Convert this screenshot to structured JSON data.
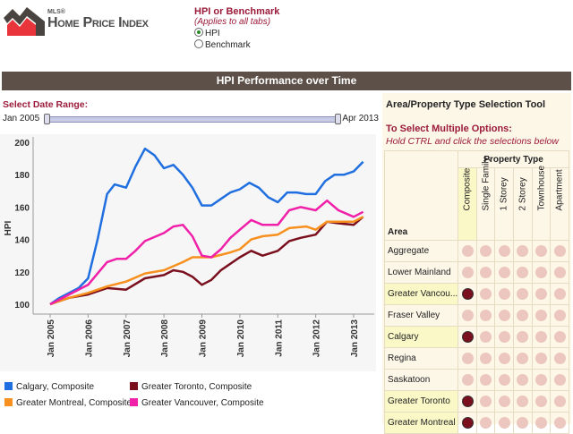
{
  "logo": {
    "mls": "MLS®",
    "title": "Home Price Index"
  },
  "options": {
    "title": "HPI or Benchmark",
    "subtitle": "(Applies to all tabs)",
    "choices": [
      {
        "label": "HPI",
        "selected": true
      },
      {
        "label": "Benchmark",
        "selected": false
      }
    ]
  },
  "banner": "HPI Performance over Time",
  "date_range": {
    "label": "Select Date Range:",
    "start": "Jan 2005",
    "end": "Apr 2013"
  },
  "panel": {
    "title": "Area/Property Type Selection Tool",
    "multi": "To Select Multiple Options:",
    "hint": "Hold CTRL and click the selections below",
    "property_type": "Property Type",
    "area_header": "Area",
    "columns": [
      "Composite",
      "Single Family",
      "1 Storey",
      "2 Storey",
      "Townhouse",
      "Apartment"
    ],
    "rows": [
      {
        "area": "Aggregate",
        "sel": []
      },
      {
        "area": "Lower Mainland",
        "sel": []
      },
      {
        "area": "Greater Vancou...",
        "sel": [
          0
        ]
      },
      {
        "area": "Fraser Valley",
        "sel": []
      },
      {
        "area": "Calgary",
        "sel": [
          0
        ]
      },
      {
        "area": "Regina",
        "sel": []
      },
      {
        "area": "Saskatoon",
        "sel": []
      },
      {
        "area": "Greater Toronto",
        "sel": [
          0
        ]
      },
      {
        "area": "Greater Montreal",
        "sel": [
          0
        ]
      }
    ]
  },
  "chart_data": {
    "type": "line",
    "ylabel": "HPI",
    "ylim": [
      100,
      200
    ],
    "yticks": [
      "100",
      "120",
      "140",
      "160",
      "180",
      "200"
    ],
    "xticks": [
      "Jan 2005",
      "Jan 2006",
      "Jan 2007",
      "Jan 2008",
      "Jan 2009",
      "Jan 2010",
      "Jan 2011",
      "Jan 2012",
      "Jan 2013"
    ],
    "series": [
      {
        "name": "Calgary, Composite",
        "color": "#1f6fe0",
        "x": [
          2005,
          2005.25,
          2005.5,
          2005.75,
          2006,
          2006.25,
          2006.5,
          2006.7,
          2007,
          2007.25,
          2007.5,
          2007.75,
          2008,
          2008.25,
          2008.5,
          2008.75,
          2009,
          2009.25,
          2009.5,
          2009.75,
          2010,
          2010.25,
          2010.5,
          2010.75,
          2011,
          2011.25,
          2011.5,
          2011.75,
          2012,
          2012.25,
          2012.5,
          2012.75,
          2013,
          2013.25
        ],
        "y": [
          100,
          104,
          107,
          110,
          116,
          140,
          168,
          174,
          172,
          185,
          196,
          192,
          184,
          186,
          180,
          172,
          161,
          161,
          165,
          169,
          171,
          175,
          172,
          166,
          163,
          169,
          169,
          168,
          168,
          176,
          180,
          180,
          182,
          188
        ]
      },
      {
        "name": "Greater Toronto, Composite",
        "color": "#7a0f1e",
        "x": [
          2005,
          2005.5,
          2006,
          2006.5,
          2007,
          2007.5,
          2008,
          2008.25,
          2008.5,
          2008.75,
          2009,
          2009.25,
          2009.5,
          2010,
          2010.3,
          2010.6,
          2011,
          2011.3,
          2011.6,
          2012,
          2012.3,
          2012.6,
          2013,
          2013.25
        ],
        "y": [
          100,
          104,
          106,
          110,
          109,
          116,
          118,
          121,
          120,
          117,
          112,
          115,
          121,
          129,
          133,
          130,
          133,
          139,
          141,
          143,
          151,
          150,
          149,
          154
        ]
      },
      {
        "name": "Greater Montreal, Composite",
        "color": "#f7901e",
        "x": [
          2005,
          2005.5,
          2006,
          2006.5,
          2007,
          2007.5,
          2008,
          2008.5,
          2008.75,
          2009,
          2009.25,
          2009.75,
          2010,
          2010.3,
          2010.6,
          2011,
          2011.3,
          2011.75,
          2012,
          2012.3,
          2012.6,
          2013,
          2013.25
        ],
        "y": [
          100,
          104,
          107,
          111,
          114,
          119,
          121,
          126,
          129,
          129,
          129,
          132,
          134,
          140,
          142,
          143,
          147,
          148,
          146,
          151,
          151,
          151,
          154
        ]
      },
      {
        "name": "Greater Vancouver, Composite",
        "color": "#f020a8",
        "x": [
          2005,
          2005.25,
          2005.5,
          2006,
          2006.25,
          2006.5,
          2006.75,
          2007,
          2007.25,
          2007.5,
          2008,
          2008.25,
          2008.5,
          2008.75,
          2009,
          2009.25,
          2009.5,
          2009.75,
          2010,
          2010.3,
          2010.6,
          2011,
          2011.3,
          2011.6,
          2012,
          2012.3,
          2012.6,
          2013,
          2013.25
        ],
        "y": [
          100,
          103,
          106,
          112,
          119,
          126,
          128,
          128,
          133,
          139,
          144,
          148,
          149,
          142,
          130,
          129,
          134,
          141,
          146,
          152,
          149,
          149,
          158,
          160,
          158,
          164,
          158,
          154,
          157
        ]
      }
    ]
  }
}
